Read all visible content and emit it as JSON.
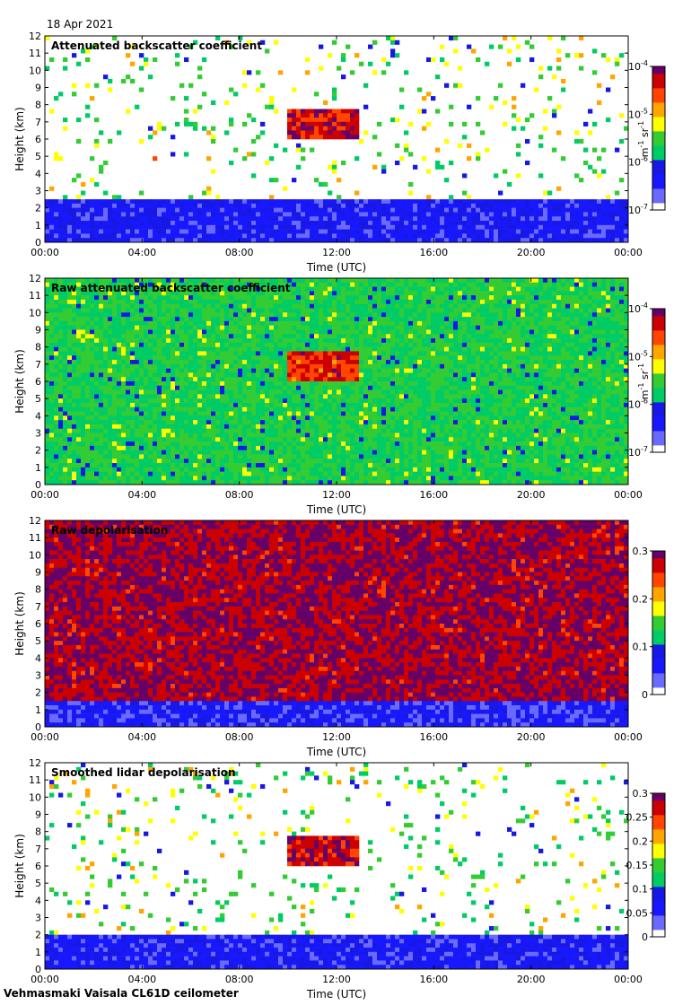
{
  "date": "18 Apr 2021",
  "footer": "Vehmasmaki Vaisala CL61D ceilometer",
  "colors": {
    "rainbow": [
      "#ffffff",
      "#6a6aff",
      "#1818ff",
      "#1818e6",
      "#00cc66",
      "#33cc33",
      "#ffff00",
      "#ffa500",
      "#ff4500",
      "#cc0000",
      "#660066"
    ]
  },
  "chart_data": [
    {
      "type": "heatmap",
      "title": "Attenuated backscatter coefficient",
      "xlabel": "Time (UTC)",
      "ylabel": "Height (km)",
      "xlim": [
        0,
        24
      ],
      "ylim": [
        0,
        12
      ],
      "x_ticks": [
        "00:00",
        "04:00",
        "08:00",
        "12:00",
        "16:00",
        "20:00",
        "00:00"
      ],
      "y_ticks": [
        "0",
        "1",
        "2",
        "3",
        "4",
        "5",
        "6",
        "7",
        "8",
        "9",
        "10",
        "11",
        "12"
      ],
      "colorbar": {
        "scale": "log",
        "unit_label": "m-1 sr-1",
        "range": [
          1e-07,
          0.0001
        ],
        "tick_labels": [
          "10-7",
          "10-6",
          "10-5",
          "10-4"
        ],
        "tick_values": [
          1e-07,
          1e-06,
          1e-05,
          0.0001
        ]
      },
      "features": [
        {
          "name": "boundary layer",
          "time_range": [
            0,
            24
          ],
          "height_range": [
            0,
            2.5
          ],
          "level": 0.22
        },
        {
          "name": "cloud",
          "time_range": [
            10,
            13
          ],
          "height_range": [
            6,
            7.7
          ],
          "level": 0.88
        }
      ]
    },
    {
      "type": "heatmap",
      "title": "Raw attenuated backscatter coefficient",
      "xlabel": "Time (UTC)",
      "ylabel": "Height (km)",
      "xlim": [
        0,
        24
      ],
      "ylim": [
        0,
        12
      ],
      "x_ticks": [
        "00:00",
        "04:00",
        "08:00",
        "12:00",
        "16:00",
        "20:00",
        "00:00"
      ],
      "y_ticks": [
        "0",
        "1",
        "2",
        "3",
        "4",
        "5",
        "6",
        "7",
        "8",
        "9",
        "10",
        "11",
        "12"
      ],
      "colorbar": {
        "scale": "log",
        "unit_label": "m-1 sr-1",
        "range": [
          1e-07,
          0.0001
        ],
        "tick_labels": [
          "10-7",
          "10-6",
          "10-5",
          "10-4"
        ],
        "tick_values": [
          1e-07,
          1e-06,
          1e-05,
          0.0001
        ]
      },
      "features": [
        {
          "name": "noise",
          "time_range": [
            0,
            24
          ],
          "height_range": [
            0,
            12
          ],
          "level": 0.45
        },
        {
          "name": "cloud",
          "time_range": [
            10,
            13
          ],
          "height_range": [
            6,
            7.7
          ],
          "level": 0.85
        }
      ]
    },
    {
      "type": "heatmap",
      "title": "Raw depolarisation",
      "xlabel": "Time (UTC)",
      "ylabel": "Height (km)",
      "xlim": [
        0,
        24
      ],
      "ylim": [
        0,
        12
      ],
      "x_ticks": [
        "00:00",
        "04:00",
        "08:00",
        "12:00",
        "16:00",
        "20:00",
        "00:00"
      ],
      "y_ticks": [
        "0",
        "1",
        "2",
        "3",
        "4",
        "5",
        "6",
        "7",
        "8",
        "9",
        "10",
        "11",
        "12"
      ],
      "colorbar": {
        "scale": "linear",
        "unit_label": "",
        "range": [
          0,
          0.3
        ],
        "tick_labels": [
          "0",
          "0.1",
          "0.2",
          "0.3"
        ],
        "tick_values": [
          0,
          0.1,
          0.2,
          0.3
        ]
      },
      "features": [
        {
          "name": "noise",
          "time_range": [
            0,
            24
          ],
          "height_range": [
            1.5,
            12
          ],
          "level": 0.95
        },
        {
          "name": "boundary layer",
          "time_range": [
            0,
            24
          ],
          "height_range": [
            0,
            1.5
          ],
          "level": 0.2
        }
      ]
    },
    {
      "type": "heatmap",
      "title": "Smoothed lidar depolarisation",
      "xlabel": "Time (UTC)",
      "ylabel": "Height (km)",
      "xlim": [
        0,
        24
      ],
      "ylim": [
        0,
        12
      ],
      "x_ticks": [
        "00:00",
        "04:00",
        "08:00",
        "12:00",
        "16:00",
        "20:00",
        "00:00"
      ],
      "y_ticks": [
        "0",
        "1",
        "2",
        "3",
        "4",
        "5",
        "6",
        "7",
        "8",
        "9",
        "10",
        "11",
        "12"
      ],
      "colorbar": {
        "scale": "linear",
        "unit_label": "",
        "range": [
          0,
          0.3
        ],
        "tick_labels": [
          "0",
          "0.05",
          "0.1",
          "0.15",
          "0.2",
          "0.25",
          "0.3"
        ],
        "tick_values": [
          0,
          0.05,
          0.1,
          0.15,
          0.2,
          0.25,
          0.3
        ]
      },
      "features": [
        {
          "name": "boundary layer",
          "time_range": [
            0,
            24
          ],
          "height_range": [
            0,
            2
          ],
          "level": 0.22
        },
        {
          "name": "cloud",
          "time_range": [
            10,
            13
          ],
          "height_range": [
            6,
            7.7
          ],
          "level": 0.92
        }
      ]
    }
  ]
}
